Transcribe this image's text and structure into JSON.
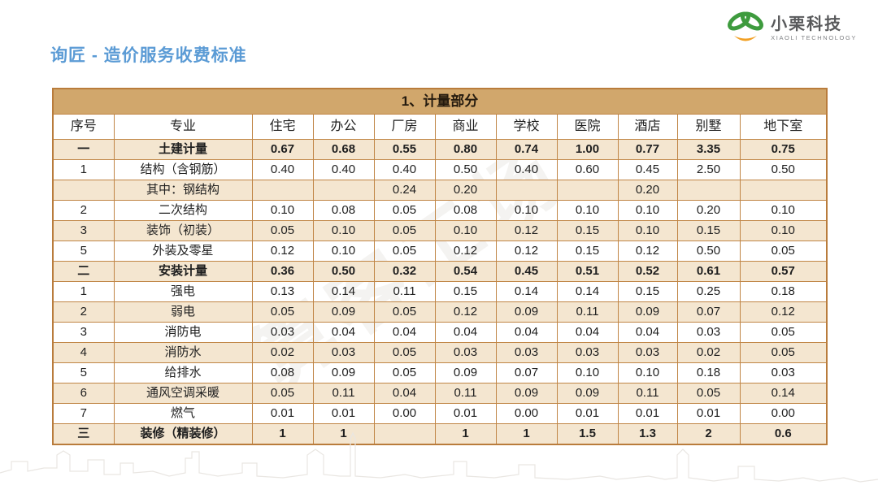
{
  "page": {
    "title": "询匠 - 造价服务收费标准"
  },
  "logo": {
    "name_cn": "小栗科技",
    "name_en": "XIAOLI TECHNOLOGY",
    "colors": {
      "green": "#3E9B3E",
      "orange": "#F2A024"
    }
  },
  "watermark": {
    "text": "算客工场"
  },
  "colors": {
    "title_blue": "#5B9BD5",
    "table_header_band": "#D1A76C",
    "row_alt": "#F4E6D0",
    "table_border": "#C08545"
  },
  "table": {
    "section_title": "1、计量部分",
    "columns": [
      "序号",
      "专业",
      "住宅",
      "办公",
      "厂房",
      "商业",
      "学校",
      "医院",
      "酒店",
      "别墅",
      "地下室"
    ],
    "rows": [
      {
        "no": "一",
        "name": "土建计量",
        "bold": true,
        "values": [
          "0.67",
          "0.68",
          "0.55",
          "0.80",
          "0.74",
          "1.00",
          "0.77",
          "3.35",
          "0.75"
        ]
      },
      {
        "no": "1",
        "name": "结构（含钢筋）",
        "bold": false,
        "values": [
          "0.40",
          "0.40",
          "0.40",
          "0.50",
          "0.40",
          "0.60",
          "0.45",
          "2.50",
          "0.50"
        ]
      },
      {
        "no": "",
        "name": "其中：钢结构",
        "bold": false,
        "values": [
          "",
          "",
          "0.24",
          "0.20",
          "",
          "",
          "0.20",
          "",
          ""
        ]
      },
      {
        "no": "2",
        "name": "二次结构",
        "bold": false,
        "values": [
          "0.10",
          "0.08",
          "0.05",
          "0.08",
          "0.10",
          "0.10",
          "0.10",
          "0.20",
          "0.10"
        ]
      },
      {
        "no": "3",
        "name": "装饰（初装）",
        "bold": false,
        "values": [
          "0.05",
          "0.10",
          "0.05",
          "0.10",
          "0.12",
          "0.15",
          "0.10",
          "0.15",
          "0.10"
        ]
      },
      {
        "no": "5",
        "name": "外装及零星",
        "bold": false,
        "values": [
          "0.12",
          "0.10",
          "0.05",
          "0.12",
          "0.12",
          "0.15",
          "0.12",
          "0.50",
          "0.05"
        ]
      },
      {
        "no": "二",
        "name": "安装计量",
        "bold": true,
        "values": [
          "0.36",
          "0.50",
          "0.32",
          "0.54",
          "0.45",
          "0.51",
          "0.52",
          "0.61",
          "0.57"
        ]
      },
      {
        "no": "1",
        "name": "强电",
        "bold": false,
        "values": [
          "0.13",
          "0.14",
          "0.11",
          "0.15",
          "0.14",
          "0.14",
          "0.15",
          "0.25",
          "0.18"
        ]
      },
      {
        "no": "2",
        "name": "弱电",
        "bold": false,
        "values": [
          "0.05",
          "0.09",
          "0.05",
          "0.12",
          "0.09",
          "0.11",
          "0.09",
          "0.07",
          "0.12"
        ]
      },
      {
        "no": "3",
        "name": "消防电",
        "bold": false,
        "values": [
          "0.03",
          "0.04",
          "0.04",
          "0.04",
          "0.04",
          "0.04",
          "0.04",
          "0.03",
          "0.05"
        ]
      },
      {
        "no": "4",
        "name": "消防水",
        "bold": false,
        "values": [
          "0.02",
          "0.03",
          "0.05",
          "0.03",
          "0.03",
          "0.03",
          "0.03",
          "0.02",
          "0.05"
        ]
      },
      {
        "no": "5",
        "name": "给排水",
        "bold": false,
        "values": [
          "0.08",
          "0.09",
          "0.05",
          "0.09",
          "0.07",
          "0.10",
          "0.10",
          "0.18",
          "0.03"
        ]
      },
      {
        "no": "6",
        "name": "通风空调采暖",
        "bold": false,
        "values": [
          "0.05",
          "0.11",
          "0.04",
          "0.11",
          "0.09",
          "0.09",
          "0.11",
          "0.05",
          "0.14"
        ]
      },
      {
        "no": "7",
        "name": "燃气",
        "bold": false,
        "values": [
          "0.01",
          "0.01",
          "0.00",
          "0.01",
          "0.00",
          "0.01",
          "0.01",
          "0.01",
          "0.00"
        ]
      },
      {
        "no": "三",
        "name": "装修（精装修）",
        "bold": true,
        "values": [
          "1",
          "1",
          "",
          "1",
          "1",
          "1.5",
          "1.3",
          "2",
          "0.6"
        ]
      }
    ]
  }
}
